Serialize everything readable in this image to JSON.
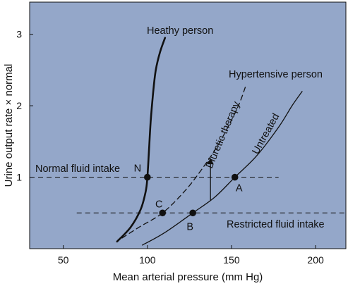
{
  "chart_data": {
    "type": "line",
    "xlabel": "Mean arterial pressure (mm Hg)",
    "ylabel": "Urine output rate × normal",
    "xlim": [
      30,
      218
    ],
    "ylim": [
      0,
      3.45
    ],
    "xticks": [
      50,
      100,
      150,
      200
    ],
    "yticks": [
      1,
      2,
      3
    ],
    "grid": false,
    "background": "#94a7c9",
    "series": [
      {
        "name": "Heathy person",
        "style": "solid-thick",
        "x": [
          82,
          90,
          96,
          99,
          100,
          101,
          102,
          103.5,
          105,
          107.5,
          110.5
        ],
        "y": [
          0.1,
          0.3,
          0.55,
          0.8,
          1.0,
          1.4,
          1.8,
          2.2,
          2.5,
          2.75,
          2.95
        ]
      },
      {
        "name": "Untreated",
        "style": "solid",
        "x": [
          97,
          110,
          127,
          140,
          152,
          165,
          178,
          186,
          192
        ],
        "y": [
          0.05,
          0.22,
          0.5,
          0.72,
          1.0,
          1.3,
          1.7,
          2.0,
          2.2
        ]
      },
      {
        "name": "Diuretic therapy",
        "style": "dashed",
        "x": [
          85,
          95,
          109,
          122,
          132,
          142,
          150,
          155,
          158.5
        ],
        "y": [
          0.15,
          0.3,
          0.5,
          0.8,
          1.1,
          1.45,
          1.8,
          2.05,
          2.28
        ]
      }
    ],
    "reference_lines": [
      {
        "label": "Normal fluid intake",
        "y": 1.0,
        "x_from": 30,
        "x_to": 178,
        "style": "dashed"
      },
      {
        "label": "Restricted fluid intake",
        "y": 0.5,
        "x_from": 58,
        "x_to": 218,
        "style": "dashed"
      }
    ],
    "points": [
      {
        "label": "N",
        "x": 100,
        "y": 1.0
      },
      {
        "label": "A",
        "x": 152,
        "y": 1.0
      },
      {
        "label": "B",
        "x": 127,
        "y": 0.5
      },
      {
        "label": "C",
        "x": 109,
        "y": 0.5
      }
    ],
    "arrow": {
      "x": 137.5,
      "y_from": 0.67,
      "y_to": 1.27
    },
    "annotations": [
      {
        "text": "Hypertensive person",
        "x": 168,
        "y": 2.45
      }
    ]
  },
  "colors": {
    "plot_background": "#94a7c9",
    "ink": "#111111"
  }
}
